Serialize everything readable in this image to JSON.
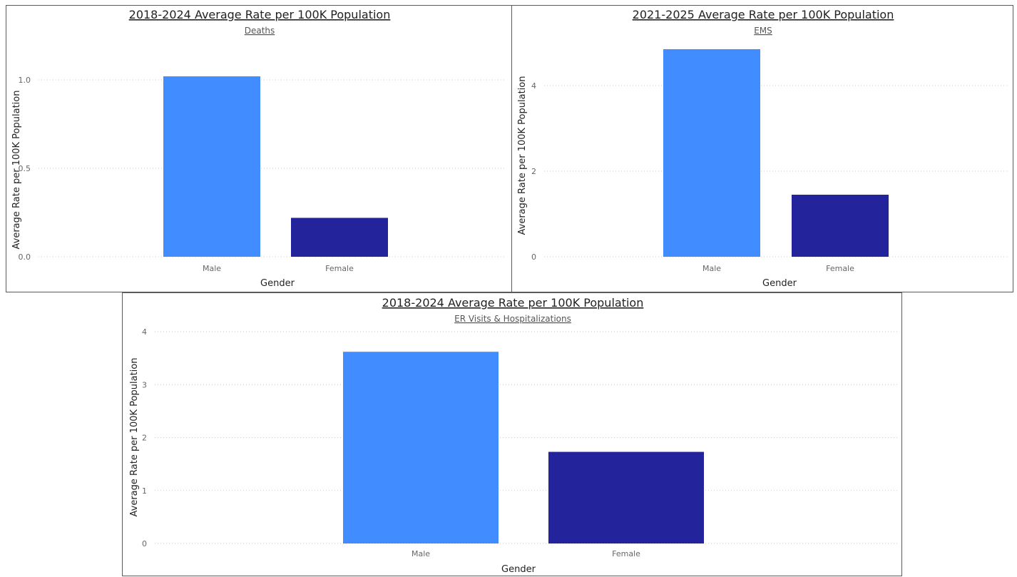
{
  "chart_data": [
    {
      "type": "bar",
      "title": "2018-2024 Average Rate per 100K Population",
      "subtitle": "Deaths",
      "xlabel": "Gender",
      "ylabel": "Average Rate per 100K Population",
      "categories": [
        "Male",
        "Female"
      ],
      "values": [
        1.02,
        0.22
      ],
      "colors": [
        "#418cff",
        "#23239b"
      ],
      "ylim": [
        0,
        1.0
      ],
      "yticks": [
        0.0,
        0.5,
        1.0
      ],
      "ytick_labels": [
        "0.0",
        "0.5",
        "1.0"
      ],
      "grid": true
    },
    {
      "type": "bar",
      "title": "2021-2025 Average Rate per 100K Population",
      "subtitle": "EMS",
      "xlabel": "Gender",
      "ylabel": "Average Rate per 100K Population",
      "categories": [
        "Male",
        "Female"
      ],
      "values": [
        4.85,
        1.45
      ],
      "colors": [
        "#418cff",
        "#23239b"
      ],
      "ylim": [
        0,
        4
      ],
      "yticks": [
        0,
        2,
        4
      ],
      "ytick_labels": [
        "0",
        "2",
        "4"
      ],
      "grid": true
    },
    {
      "type": "bar",
      "title": "2018-2024 Average Rate per 100K Population",
      "subtitle": "ER Visits & Hospitalizations",
      "xlabel": "Gender",
      "ylabel": "Average Rate per 100K Population",
      "categories": [
        "Male",
        "Female"
      ],
      "values": [
        3.62,
        1.73
      ],
      "colors": [
        "#418cff",
        "#23239b"
      ],
      "ylim": [
        0,
        4
      ],
      "yticks": [
        0,
        1,
        2,
        3,
        4
      ],
      "ytick_labels": [
        "0",
        "1",
        "2",
        "3",
        "4"
      ],
      "grid": true
    }
  ]
}
